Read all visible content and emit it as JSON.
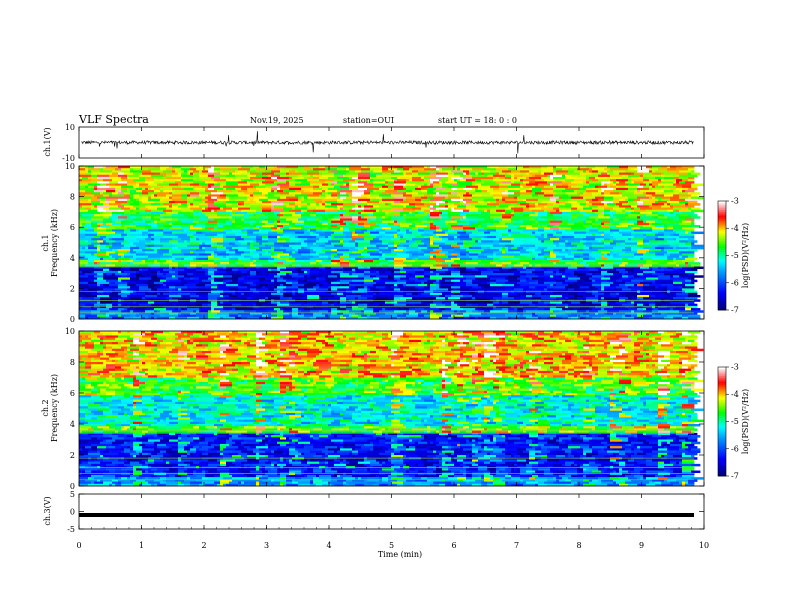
{
  "header": {
    "title": "VLF Spectra",
    "date": "Nov.19, 2025",
    "station": "station=OUI",
    "start": "start  UT =  18: 0  : 0"
  },
  "chart_data": [
    {
      "type": "line",
      "name": "ch1-waveform",
      "ylabel": "ch.1(V)",
      "ylim": [
        -10,
        10
      ],
      "yticks": [
        "10",
        "-10"
      ],
      "baseline": 0,
      "color": "#000000"
    },
    {
      "type": "heatmap",
      "name": "ch1-spectrogram",
      "ylabel": "ch.1 Frequency (kHz)",
      "ylabel_top": "ch.1",
      "ylabel_bottom": "Frequency  (kHz)",
      "ylim": [
        0,
        10
      ],
      "yticks": [
        "0",
        "2",
        "4",
        "6",
        "8",
        "10"
      ],
      "colorbar": {
        "label": "log(PSD)(V²/Hz)",
        "range": [
          -7,
          -3
        ],
        "ticks": [
          "-3",
          "-4",
          "-5",
          "-6",
          "-7"
        ],
        "colormap": [
          "#00007f",
          "#0000ff",
          "#00ffff",
          "#00ff00",
          "#ffff00",
          "#ff0000",
          "#ffffff"
        ]
      }
    },
    {
      "type": "heatmap",
      "name": "ch2-spectrogram",
      "ylabel": "ch.2 Frequency (kHz)",
      "ylabel_top": "ch.2",
      "ylabel_bottom": "Frequency  (kHz)",
      "ylim": [
        0,
        10
      ],
      "yticks": [
        "0",
        "2",
        "4",
        "6",
        "8",
        "10"
      ],
      "colorbar": {
        "label": "log(PSD)(V²/Hz)",
        "range": [
          -7,
          -3
        ],
        "ticks": [
          "-3",
          "-4",
          "-5",
          "-6",
          "-7"
        ],
        "colormap": [
          "#00007f",
          "#0000ff",
          "#00ffff",
          "#00ff00",
          "#ffff00",
          "#ff0000",
          "#ffffff"
        ]
      }
    },
    {
      "type": "line",
      "name": "ch3-waveform",
      "ylabel": "ch.3(V)",
      "ylim": [
        -5,
        5
      ],
      "yticks": [
        "5",
        "0",
        "-5"
      ],
      "value": -1,
      "color": "#000000"
    }
  ],
  "xaxis": {
    "label": "Time  (min)",
    "range": [
      0,
      10
    ],
    "ticks": [
      "0",
      "1",
      "2",
      "3",
      "4",
      "5",
      "6",
      "7",
      "8",
      "9",
      "10"
    ],
    "data_end": 9.84
  }
}
